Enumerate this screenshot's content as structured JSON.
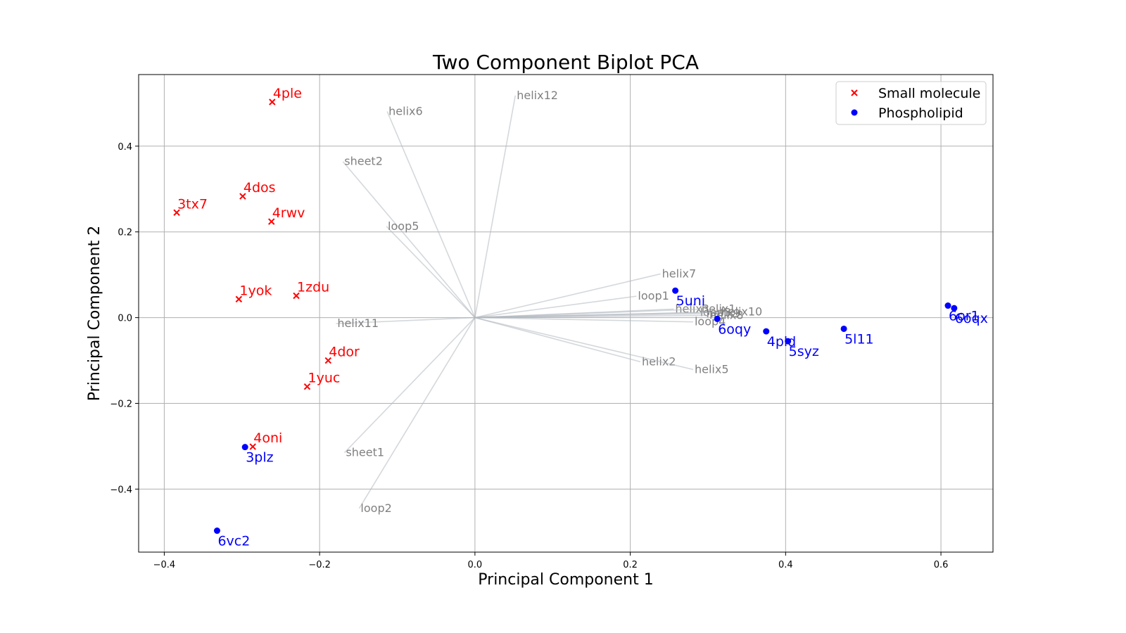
{
  "chart_data": {
    "type": "scatter",
    "title": "Two Component Biplot PCA",
    "xlabel": "Principal Component 1",
    "ylabel": "Principal Component 2",
    "xlim": [
      -0.433,
      0.667
    ],
    "ylim": [
      -0.547,
      0.567
    ],
    "xticks": [
      -0.4,
      -0.2,
      0.0,
      0.2,
      0.4,
      0.6
    ],
    "xtick_labels": [
      "−0.4",
      "−0.2",
      "0.0",
      "0.2",
      "0.4",
      "0.6"
    ],
    "yticks": [
      -0.4,
      -0.2,
      0.0,
      0.2,
      0.4
    ],
    "ytick_labels": [
      "−0.4",
      "−0.2",
      "0.0",
      "0.2",
      "0.4"
    ],
    "grid": true,
    "legend_position": "top-right",
    "series": [
      {
        "name": "Small molecule",
        "marker": "x",
        "color": "#ff0000",
        "points": [
          {
            "label": "4ple",
            "x": -0.261,
            "y": 0.503
          },
          {
            "label": "4dos",
            "x": -0.299,
            "y": 0.283
          },
          {
            "label": "3tx7",
            "x": -0.384,
            "y": 0.245
          },
          {
            "label": "4rwv",
            "x": -0.262,
            "y": 0.224
          },
          {
            "label": "1yok",
            "x": -0.304,
            "y": 0.043
          },
          {
            "label": "1zdu",
            "x": -0.23,
            "y": 0.051
          },
          {
            "label": "4dor",
            "x": -0.189,
            "y": -0.1
          },
          {
            "label": "1yuc",
            "x": -0.216,
            "y": -0.161
          },
          {
            "label": "4oni",
            "x": -0.286,
            "y": -0.301
          }
        ]
      },
      {
        "name": "Phospholipid",
        "marker": "o",
        "color": "#0000ff",
        "points": [
          {
            "label": "5uni",
            "x": 0.258,
            "y": 0.063
          },
          {
            "label": "6oqy",
            "x": 0.312,
            "y": -0.003
          },
          {
            "label": "4pld",
            "x": 0.375,
            "y": -0.032
          },
          {
            "label": "5syz",
            "x": 0.403,
            "y": -0.055
          },
          {
            "label": "5l11",
            "x": 0.475,
            "y": -0.026
          },
          {
            "label": "6or1",
            "x": 0.609,
            "y": 0.028
          },
          {
            "label": "6oqx",
            "x": 0.617,
            "y": 0.022
          },
          {
            "label": "3plz",
            "x": -0.296,
            "y": -0.302
          },
          {
            "label": "6vc2",
            "x": -0.332,
            "y": -0.497
          }
        ]
      }
    ],
    "loadings": [
      {
        "label": "helix12",
        "x": 0.052,
        "y": 0.518
      },
      {
        "label": "helix6",
        "x": -0.113,
        "y": 0.481
      },
      {
        "label": "sheet2",
        "x": -0.17,
        "y": 0.364
      },
      {
        "label": "loop5",
        "x": -0.114,
        "y": 0.213
      },
      {
        "label": "helix7",
        "x": 0.239,
        "y": 0.102
      },
      {
        "label": "loop1",
        "x": 0.208,
        "y": 0.05
      },
      {
        "label": "helix3",
        "x": 0.256,
        "y": 0.02
      },
      {
        "label": "helix1",
        "x": 0.29,
        "y": 0.02
      },
      {
        "label": "loop3",
        "x": 0.288,
        "y": 0.012
      },
      {
        "label": "helix9",
        "x": 0.296,
        "y": 0.009
      },
      {
        "label": "helix10",
        "x": 0.315,
        "y": 0.013
      },
      {
        "label": "helix8",
        "x": 0.3,
        "y": 0.005
      },
      {
        "label": "loop4",
        "x": 0.281,
        "y": -0.01
      },
      {
        "label": "helix11",
        "x": -0.179,
        "y": -0.014
      },
      {
        "label": "helix2",
        "x": 0.213,
        "y": -0.103
      },
      {
        "label": "helix5",
        "x": 0.281,
        "y": -0.121
      },
      {
        "label": "sheet1",
        "x": -0.168,
        "y": -0.315
      },
      {
        "label": "loop2",
        "x": -0.149,
        "y": -0.445
      }
    ]
  }
}
